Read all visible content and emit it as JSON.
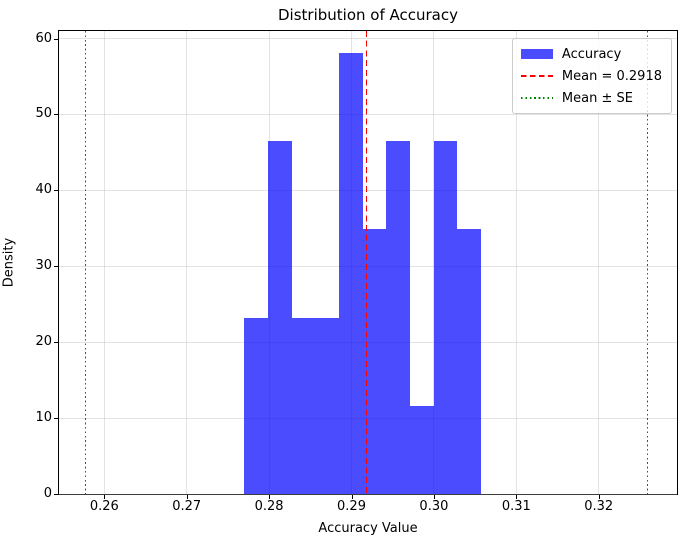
{
  "chart_data": {
    "type": "bar",
    "subtype": "histogram-density",
    "title": "Distribution of Accuracy",
    "xlabel": "Accuracy Value",
    "ylabel": "Density",
    "xlim": [
      0.2545,
      0.3295
    ],
    "ylim": [
      0,
      61.0
    ],
    "grid": true,
    "x_ticks": [
      0.26,
      0.27,
      0.28,
      0.29,
      0.3,
      0.31,
      0.32
    ],
    "x_tick_labels": [
      "0.26",
      "0.27",
      "0.28",
      "0.29",
      "0.30",
      "0.31",
      "0.32"
    ],
    "y_ticks": [
      0,
      10,
      20,
      30,
      40,
      50,
      60
    ],
    "y_tick_labels": [
      "0",
      "10",
      "20",
      "30",
      "40",
      "50",
      "60"
    ],
    "bin_edges": [
      0.277,
      0.27987,
      0.28274,
      0.28561,
      0.28848,
      0.29135,
      0.29422,
      0.29709,
      0.29996,
      0.30283,
      0.3057
    ],
    "densities": [
      23.2,
      46.5,
      23.2,
      23.2,
      58.1,
      34.9,
      46.5,
      11.6,
      46.5,
      34.9
    ],
    "counts": [
      2,
      4,
      2,
      2,
      5,
      3,
      4,
      1,
      4,
      3
    ],
    "bar_color": "#0000FF",
    "bar_alpha": 0.7,
    "grid_color": "#B0B0B0",
    "mean_line": {
      "value": 0.2918,
      "color": "#FF0000",
      "style": "dashed",
      "label": "Mean = 0.2918"
    },
    "se_lines": {
      "values": [
        0.2577,
        0.3259
      ],
      "color": "#008000",
      "style": "dotted",
      "label": "Mean ± SE"
    },
    "legend": {
      "position": "upper right",
      "entries": [
        {
          "swatch": "patch",
          "color": "#0000FF",
          "alpha": 0.7,
          "label": "Accuracy"
        },
        {
          "swatch": "dashed-line",
          "color": "#FF0000",
          "alpha": 1.0,
          "label": "Mean = 0.2918"
        },
        {
          "swatch": "dotted-line",
          "color": "#008000",
          "alpha": 1.0,
          "label": "Mean ± SE"
        }
      ]
    }
  }
}
